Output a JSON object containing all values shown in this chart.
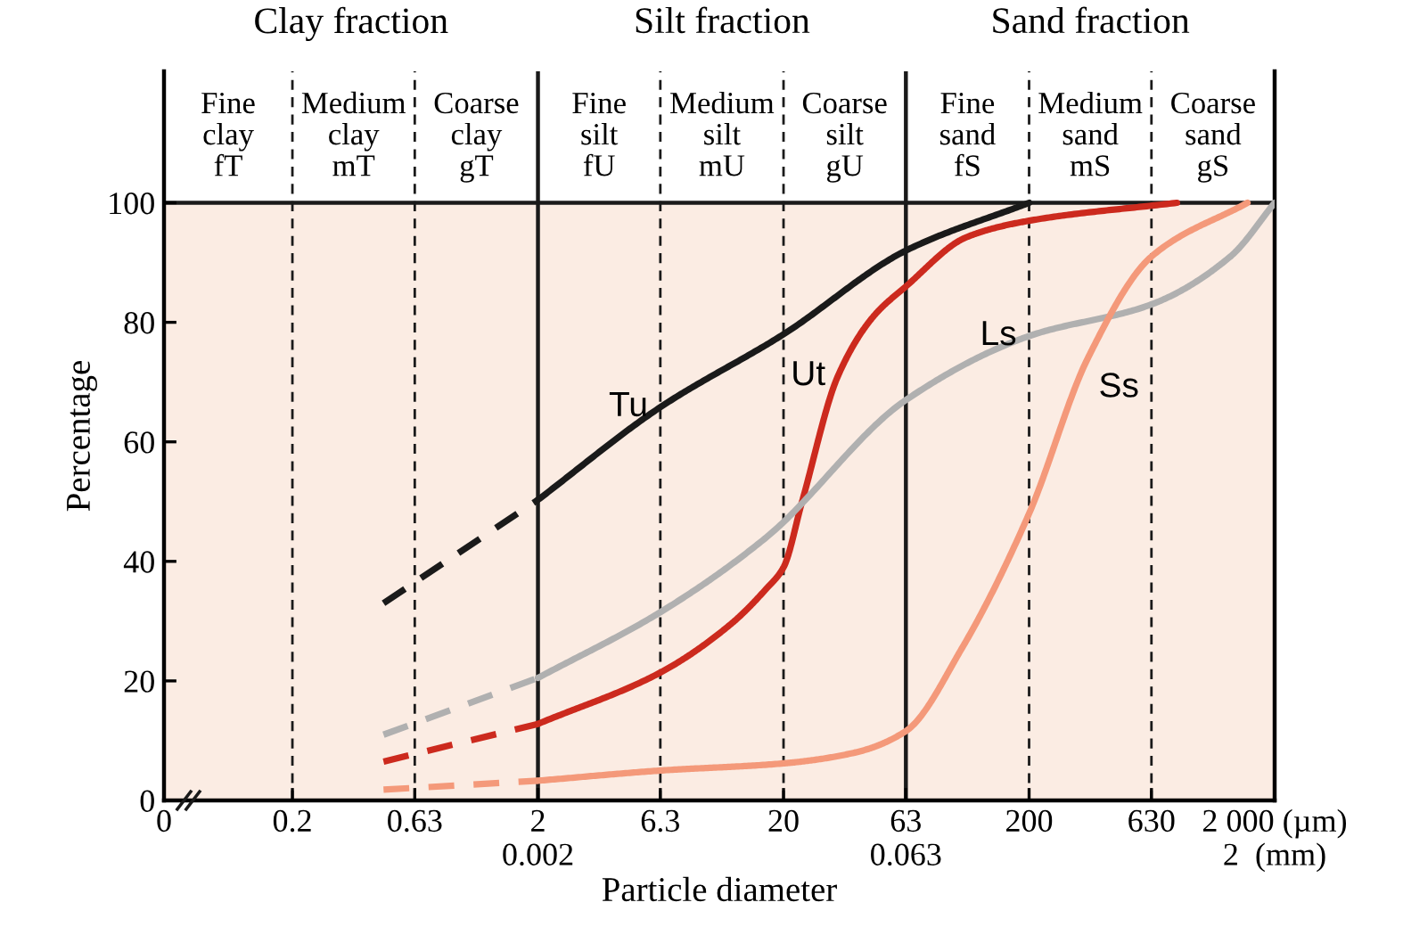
{
  "chart_data": {
    "type": "line",
    "log": "x",
    "xlabel": "Particle diameter",
    "ylabel": "Percentage",
    "xlim": [
      0.06,
      2000
    ],
    "ylim": [
      0,
      122
    ],
    "xticks": [
      {
        "value": 0.06,
        "label": "0"
      },
      0.2,
      0.63,
      {
        "value": 2,
        "label": "2\n0.002"
      },
      6.3,
      20,
      {
        "value": 63,
        "label": "63\n0.063"
      },
      200,
      630,
      {
        "value": 2000,
        "label": "2 000 (µm)\n2  (mm)"
      }
    ],
    "yticks": [
      0,
      20,
      40,
      60,
      80,
      100
    ],
    "grid": false,
    "marker": "none",
    "series": [
      {
        "color": "#1a1a1a",
        "line_style": "dashed",
        "x": [
          0.47,
          2
        ],
        "values": [
          33,
          50.3
        ]
      },
      {
        "color": "#1a1a1a",
        "line_style": "solid",
        "x": [
          2,
          6.3,
          20,
          63,
          200
        ],
        "values": [
          50.3,
          65.8,
          78,
          92,
          100
        ]
      },
      {
        "color": "#cc2a1e",
        "line_style": "dashed",
        "x": [
          0.47,
          2
        ],
        "values": [
          6.5,
          12.8
        ]
      },
      {
        "color": "#cc2a1e",
        "line_style": "solid",
        "x": [
          2,
          6.3,
          12.2,
          17,
          20,
          23.8,
          33.3,
          46.5,
          63,
          112,
          200,
          800
        ],
        "values": [
          12.8,
          21.4,
          29.5,
          35.4,
          39,
          50,
          71,
          81,
          86,
          94.3,
          97,
          100
        ]
      },
      {
        "color": "#b0b0b0",
        "line_style": "dashed",
        "x": [
          0.47,
          2
        ],
        "values": [
          11,
          20.5
        ]
      },
      {
        "color": "#b0b0b0",
        "line_style": "solid",
        "x": [
          2,
          6.3,
          17,
          63,
          200,
          630,
          1320,
          2000
        ],
        "values": [
          20.5,
          31.5,
          44,
          67,
          77.7,
          83,
          91,
          100
        ]
      },
      {
        "color": "#f4997a",
        "line_style": "dashed",
        "x": [
          0.47,
          2
        ],
        "values": [
          1.8,
          3.3
        ]
      },
      {
        "color": "#f4997a",
        "line_style": "solid",
        "x": [
          2,
          6.3,
          20,
          39,
          63,
          107,
          200,
          347,
          630,
          1550
        ],
        "values": [
          3.3,
          5,
          6.2,
          8,
          11.6,
          25.6,
          48,
          74,
          91,
          100
        ]
      }
    ],
    "annotations": [
      {
        "text": "Tu",
        "x": 6.3,
        "y": 65.8
      },
      {
        "text": "Ut",
        "x": 33.3,
        "y": 71
      },
      {
        "text": "Ls",
        "x": 200,
        "y": 77.7
      },
      {
        "text": "Ss",
        "x": 630,
        "y": 69
      },
      "Clay fraction",
      "Silt fraction",
      "Sand fraction",
      "Fine\nclay\nfT",
      "Medium\nclay\nmT",
      "Coarse\nclay\ngT",
      "Fine\nsilt\nfU",
      "Medium\nsilt\nmU",
      "Coarse\nsilt\ngU",
      "Fine\nsand\nfS",
      "Medium\nsand\nmS",
      "Coarse\nsand\ngS"
    ],
    "ref_lines": [
      {
        "axis": "x",
        "value": 0.2,
        "line_style": "dashed"
      },
      {
        "axis": "x",
        "value": 0.63,
        "line_style": "dashed"
      },
      {
        "axis": "x",
        "value": 2,
        "line_style": "solid"
      },
      {
        "axis": "x",
        "value": 6.3,
        "line_style": "dashed"
      },
      {
        "axis": "x",
        "value": 20,
        "line_style": "dashed"
      },
      {
        "axis": "x",
        "value": 63,
        "line_style": "solid"
      },
      {
        "axis": "x",
        "value": 200,
        "line_style": "dashed"
      },
      {
        "axis": "x",
        "value": 630,
        "line_style": "dashed"
      },
      {
        "axis": "y",
        "value": 100,
        "line_style": "solid"
      }
    ],
    "bands": [
      {
        "axis": "y",
        "from": 0,
        "to": 100,
        "color": "#fbece3"
      }
    ]
  }
}
